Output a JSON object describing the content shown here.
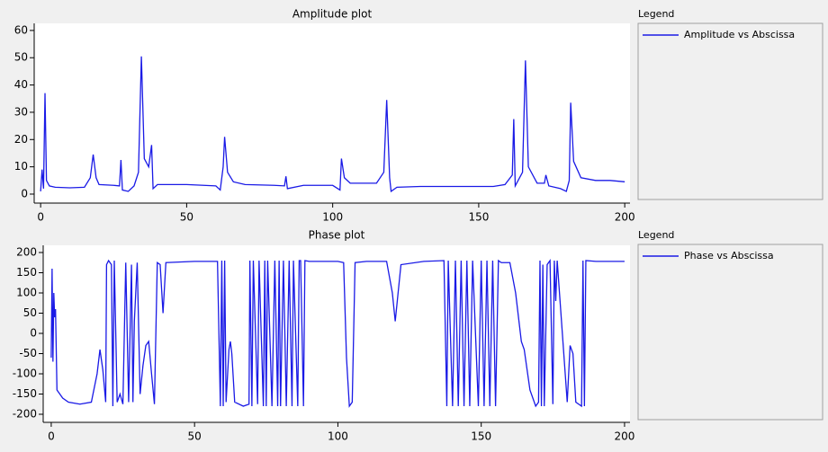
{
  "chart_data": [
    {
      "type": "line",
      "title": "Amplitude plot",
      "legend_title": "Legend",
      "x": [
        0,
        0.5,
        1,
        1.5,
        2,
        3,
        5,
        10,
        15,
        17,
        18,
        19,
        20,
        25,
        27,
        27.5,
        28,
        30,
        32,
        33.5,
        34.5,
        35.5,
        37,
        38,
        38.5,
        40,
        50,
        60,
        61.5,
        62.5,
        63,
        64,
        66,
        70,
        80,
        83.5,
        84,
        84.5,
        90,
        100,
        102.5,
        103,
        104,
        106,
        115,
        117.5,
        118.5,
        119.5,
        120,
        122,
        130,
        140,
        155,
        159,
        161.5,
        162,
        162.5,
        165,
        166,
        167,
        170,
        172.5,
        173,
        174,
        178,
        180,
        181,
        181.5,
        182.5,
        185,
        190,
        195,
        200
      ],
      "series": [
        {
          "name": "Amplitude vs Abscissa",
          "color": "#1a1ae6",
          "values": [
            1,
            9,
            2,
            37,
            5,
            3,
            2.5,
            2.3,
            2.5,
            6,
            14.5,
            6,
            3.5,
            3.2,
            3,
            12.5,
            1.5,
            1,
            3,
            8,
            50.5,
            13,
            10,
            18,
            2,
            3.5,
            3.5,
            3,
            1.5,
            10,
            21,
            8,
            4.5,
            3.5,
            3.2,
            3,
            6.5,
            2,
            3.2,
            3.2,
            1.5,
            13,
            6,
            4,
            4,
            8,
            34.5,
            6,
            1,
            2.5,
            2.8,
            2.8,
            2.8,
            3.5,
            7,
            27.5,
            3,
            8,
            49,
            10,
            4,
            4,
            7,
            3,
            2,
            1,
            5,
            33.5,
            12,
            6,
            5,
            5,
            4.5
          ]
        }
      ],
      "xlim": [
        -2.2,
        201.8
      ],
      "ylim": [
        -3.3,
        62.6
      ],
      "xticks": [
        0,
        50,
        100,
        150,
        200
      ],
      "yticks": [
        0,
        10,
        20,
        30,
        40,
        50,
        60
      ]
    },
    {
      "type": "line",
      "title": "Phase plot",
      "legend_title": "Legend",
      "x": [
        0,
        0.3,
        0.6,
        0.9,
        1.2,
        1.5,
        2,
        3,
        4,
        6,
        10,
        14,
        16,
        17,
        18,
        19,
        19.3,
        20,
        21,
        21.5,
        22,
        23,
        24,
        25,
        26,
        27,
        28,
        28.5,
        29,
        30,
        31,
        32,
        33,
        34,
        35,
        36,
        37,
        38,
        39,
        40,
        50,
        58,
        59,
        59.5,
        60,
        60.5,
        61,
        62,
        62.5,
        63,
        64,
        67,
        69,
        69.3,
        70,
        70.5,
        72,
        72.5,
        74,
        74.5,
        75,
        75.5,
        77,
        78,
        79,
        79.5,
        80,
        81,
        82,
        83,
        84,
        84.5,
        86,
        86.5,
        87,
        88,
        88.5,
        90,
        100,
        102,
        103,
        104,
        105,
        106,
        110,
        117,
        119,
        120,
        121,
        122,
        130,
        137,
        138,
        138.5,
        140,
        141,
        142,
        143,
        144,
        145,
        146,
        147,
        149,
        150,
        151,
        152,
        153,
        154,
        155,
        156,
        157,
        160,
        162,
        164,
        165,
        167,
        169,
        170,
        170.5,
        171,
        171.5,
        172,
        173,
        174,
        175,
        175.5,
        176,
        176.5,
        180,
        181,
        182,
        183,
        185,
        185.5,
        186,
        186.5,
        190,
        195,
        200
      ],
      "series": [
        {
          "name": "Phase vs Abscissa",
          "color": "#1a1ae6",
          "values": [
            -60,
            160,
            -70,
            100,
            40,
            60,
            -140,
            -150,
            -160,
            -170,
            -175,
            -170,
            -100,
            -40,
            -90,
            -170,
            170,
            180,
            170,
            -180,
            180,
            -170,
            -150,
            -175,
            175,
            -170,
            170,
            -170,
            30,
            175,
            -150,
            -80,
            -30,
            -20,
            -100,
            -175,
            175,
            170,
            50,
            175,
            178,
            178,
            -180,
            180,
            -180,
            180,
            -170,
            -40,
            -20,
            -50,
            -170,
            -180,
            -175,
            180,
            -180,
            180,
            -175,
            180,
            -180,
            180,
            -180,
            180,
            -180,
            180,
            -180,
            180,
            -180,
            180,
            -180,
            180,
            -180,
            180,
            -180,
            180,
            180,
            -180,
            180,
            178,
            178,
            175,
            -60,
            -180,
            -170,
            175,
            178,
            178,
            100,
            30,
            100,
            170,
            178,
            180,
            -180,
            180,
            -180,
            180,
            -180,
            180,
            -180,
            180,
            -180,
            180,
            -180,
            180,
            -180,
            180,
            -180,
            180,
            -180,
            180,
            175,
            175,
            100,
            -20,
            -40,
            -140,
            -180,
            -170,
            180,
            -180,
            170,
            -180,
            170,
            180,
            -175,
            180,
            80,
            180,
            -170,
            -30,
            -50,
            -170,
            -180,
            180,
            -180,
            180,
            178,
            178,
            178
          ]
        }
      ],
      "xlim": [
        -2.8,
        201.9
      ],
      "ylim": [
        -220,
        217.8
      ],
      "xticks": [
        0,
        50,
        100,
        150,
        200
      ],
      "yticks": [
        -200,
        -150,
        -100,
        -50,
        0,
        50,
        100,
        150,
        200
      ]
    }
  ]
}
